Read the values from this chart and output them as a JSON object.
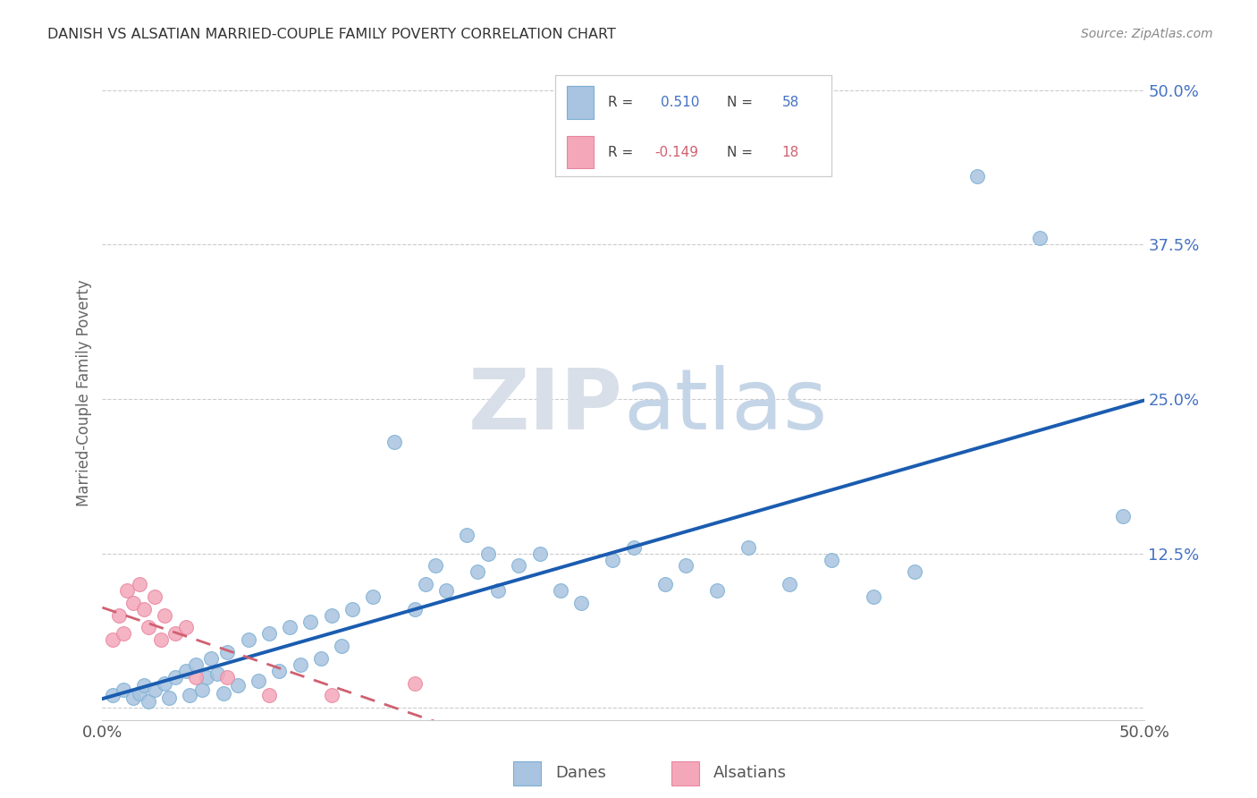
{
  "title": "DANISH VS ALSATIAN MARRIED-COUPLE FAMILY POVERTY CORRELATION CHART",
  "source": "Source: ZipAtlas.com",
  "ylabel": "Married-Couple Family Poverty",
  "xlim": [
    0.0,
    0.5
  ],
  "ylim": [
    -0.01,
    0.52
  ],
  "danes_color": "#a8c4e0",
  "danes_edge_color": "#7bafd4",
  "alsatians_color": "#f4a7b9",
  "alsatians_edge_color": "#e885a0",
  "danes_line_color": "#1a5cb0",
  "alsatians_line_color": "#d06070",
  "danes_R": "0.510",
  "danes_N": "58",
  "alsatians_R": "-0.149",
  "alsatians_N": "18",
  "r_n_color": "#4472c4",
  "r_neg_color": "#d06070",
  "watermark_zip": "ZIP",
  "watermark_atlas": "atlas",
  "background_color": "#ffffff",
  "grid_color": "#cccccc",
  "grid_style": "--",
  "danes_x": [
    0.005,
    0.01,
    0.015,
    0.018,
    0.02,
    0.022,
    0.025,
    0.03,
    0.032,
    0.035,
    0.04,
    0.042,
    0.045,
    0.048,
    0.05,
    0.052,
    0.055,
    0.058,
    0.06,
    0.065,
    0.07,
    0.075,
    0.08,
    0.085,
    0.09,
    0.095,
    0.1,
    0.105,
    0.11,
    0.115,
    0.12,
    0.13,
    0.14,
    0.15,
    0.155,
    0.16,
    0.165,
    0.175,
    0.18,
    0.185,
    0.19,
    0.2,
    0.21,
    0.22,
    0.23,
    0.245,
    0.255,
    0.27,
    0.28,
    0.295,
    0.31,
    0.33,
    0.35,
    0.37,
    0.39,
    0.42,
    0.45,
    0.49
  ],
  "danes_y": [
    0.01,
    0.015,
    0.008,
    0.012,
    0.018,
    0.005,
    0.015,
    0.02,
    0.008,
    0.025,
    0.03,
    0.01,
    0.035,
    0.015,
    0.025,
    0.04,
    0.028,
    0.012,
    0.045,
    0.018,
    0.055,
    0.022,
    0.06,
    0.03,
    0.065,
    0.035,
    0.07,
    0.04,
    0.075,
    0.05,
    0.08,
    0.09,
    0.215,
    0.08,
    0.1,
    0.115,
    0.095,
    0.14,
    0.11,
    0.125,
    0.095,
    0.115,
    0.125,
    0.095,
    0.085,
    0.12,
    0.13,
    0.1,
    0.115,
    0.095,
    0.13,
    0.1,
    0.12,
    0.09,
    0.11,
    0.43,
    0.38,
    0.155
  ],
  "alsatians_x": [
    0.005,
    0.008,
    0.01,
    0.012,
    0.015,
    0.018,
    0.02,
    0.022,
    0.025,
    0.028,
    0.03,
    0.035,
    0.04,
    0.045,
    0.06,
    0.08,
    0.11,
    0.15
  ],
  "alsatians_y": [
    0.055,
    0.075,
    0.06,
    0.095,
    0.085,
    0.1,
    0.08,
    0.065,
    0.09,
    0.055,
    0.075,
    0.06,
    0.065,
    0.025,
    0.025,
    0.01,
    0.01,
    0.02
  ]
}
